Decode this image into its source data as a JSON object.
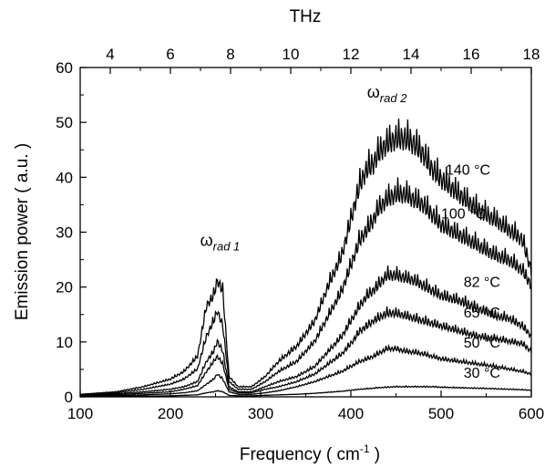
{
  "chart_data": {
    "type": "line",
    "xlabel": "Frequency ( cm",
    "xlabel_sup": "-1",
    "xlabel_end": " )",
    "ylabel": "Emission power  ( a.u. )",
    "top_axis_label": "THz",
    "xlim": [
      100,
      600
    ],
    "ylim": [
      0,
      60
    ],
    "top_xlim_thz": [
      3.0,
      18.0
    ],
    "x_ticks": [
      100,
      200,
      300,
      400,
      500,
      600
    ],
    "y_ticks": [
      0,
      10,
      20,
      30,
      40,
      50,
      60
    ],
    "top_ticks": [
      4,
      6,
      8,
      10,
      12,
      14,
      16,
      18
    ],
    "grid": false,
    "line_color": "#000000",
    "peak_labels": [
      {
        "greek": "ω",
        "sub": "rad 1",
        "x": 255,
        "y": 27.5
      },
      {
        "greek": "ω",
        "sub": "rad 2",
        "x": 440,
        "y": 54.5
      }
    ],
    "series": [
      {
        "name": "140 °C",
        "label_x": 505,
        "label_y": 40.5,
        "x": [
          100,
          140,
          170,
          200,
          215,
          230,
          240,
          248,
          252,
          258,
          265,
          275,
          290,
          305,
          320,
          340,
          360,
          375,
          390,
          400,
          410,
          418,
          425,
          430,
          440,
          450,
          460,
          470,
          480,
          490,
          500,
          520,
          540,
          560,
          575,
          590,
          600
        ],
        "y": [
          0.5,
          1.0,
          2.0,
          3.5,
          5.0,
          8.0,
          18.0,
          20.0,
          23.0,
          21.0,
          4.0,
          2.0,
          2.0,
          4.0,
          7.0,
          10.0,
          15.0,
          22.0,
          28.0,
          35.0,
          42.0,
          45.0,
          46.0,
          48.0,
          50.0,
          51.0,
          51.0,
          50.0,
          48.0,
          45.0,
          43.0,
          40.0,
          37.0,
          35.0,
          33.0,
          31.0,
          25.0
        ]
      },
      {
        "name": "100 °C",
        "label_x": 500,
        "label_y": 32.5,
        "x": [
          100,
          140,
          170,
          200,
          215,
          230,
          240,
          248,
          252,
          258,
          265,
          275,
          290,
          305,
          320,
          340,
          360,
          375,
          390,
          400,
          410,
          418,
          425,
          430,
          440,
          450,
          460,
          470,
          480,
          490,
          500,
          520,
          540,
          560,
          575,
          590,
          600
        ],
        "y": [
          0.4,
          0.8,
          1.5,
          2.5,
          3.5,
          5.5,
          12.0,
          15.0,
          17.0,
          14.0,
          3.0,
          1.5,
          1.5,
          3.0,
          5.0,
          7.0,
          11.0,
          16.0,
          21.0,
          26.0,
          31.0,
          33.0,
          35.0,
          37.0,
          39.0,
          40.0,
          40.0,
          39.0,
          38.0,
          36.0,
          34.0,
          32.0,
          30.0,
          28.0,
          27.0,
          25.0,
          22.0
        ]
      },
      {
        "name": "82 °C",
        "label_x": 525,
        "label_y": 20.0,
        "x": [
          100,
          140,
          170,
          200,
          215,
          230,
          240,
          248,
          252,
          258,
          265,
          275,
          290,
          305,
          320,
          340,
          360,
          375,
          390,
          400,
          410,
          418,
          425,
          430,
          440,
          450,
          460,
          470,
          480,
          490,
          500,
          520,
          540,
          560,
          575,
          590,
          600
        ],
        "y": [
          0.3,
          0.6,
          1.0,
          1.5,
          2.0,
          3.0,
          7.0,
          9.0,
          11.0,
          9.0,
          2.0,
          1.0,
          1.0,
          2.0,
          3.0,
          4.0,
          6.0,
          9.0,
          12.0,
          15.0,
          18.0,
          20.0,
          21.0,
          22.0,
          24.0,
          24.0,
          23.5,
          23.0,
          22.0,
          21.0,
          20.0,
          19.0,
          17.5,
          16.0,
          15.5,
          14.0,
          12.0
        ]
      },
      {
        "name": "65 °C",
        "label_x": 525,
        "label_y": 14.5,
        "x": [
          100,
          140,
          170,
          200,
          215,
          230,
          240,
          248,
          252,
          258,
          265,
          275,
          290,
          305,
          320,
          340,
          360,
          375,
          390,
          400,
          410,
          418,
          425,
          430,
          440,
          450,
          460,
          470,
          480,
          490,
          500,
          520,
          540,
          560,
          575,
          590,
          600
        ],
        "y": [
          0.2,
          0.4,
          0.7,
          1.0,
          1.5,
          2.2,
          5.0,
          7.0,
          8.0,
          6.5,
          1.5,
          0.8,
          0.8,
          1.5,
          2.0,
          3.0,
          4.5,
          6.5,
          8.5,
          10.5,
          13.0,
          14.0,
          15.0,
          15.5,
          16.5,
          16.5,
          16.0,
          15.5,
          15.0,
          14.5,
          14.0,
          13.0,
          12.0,
          11.5,
          11.0,
          10.5,
          9.0
        ]
      },
      {
        "name": "50 °C",
        "label_x": 525,
        "label_y": 9.0,
        "x": [
          100,
          140,
          170,
          200,
          215,
          230,
          240,
          248,
          252,
          258,
          265,
          275,
          290,
          305,
          320,
          340,
          360,
          375,
          390,
          400,
          410,
          418,
          425,
          430,
          440,
          450,
          460,
          470,
          480,
          490,
          500,
          520,
          540,
          560,
          575,
          590,
          600
        ],
        "y": [
          0.1,
          0.2,
          0.4,
          0.6,
          0.8,
          1.2,
          2.5,
          3.5,
          4.5,
          3.5,
          1.0,
          0.5,
          0.5,
          0.8,
          1.2,
          2.0,
          3.0,
          4.0,
          5.0,
          6.0,
          7.0,
          7.5,
          8.0,
          8.5,
          9.5,
          9.5,
          9.0,
          8.8,
          8.5,
          8.0,
          7.5,
          7.0,
          6.5,
          6.0,
          5.5,
          5.0,
          4.5
        ]
      },
      {
        "name": "30 °C",
        "label_x": 525,
        "label_y": 3.5,
        "x": [
          100,
          140,
          170,
          200,
          215,
          230,
          240,
          248,
          252,
          258,
          265,
          275,
          290,
          305,
          320,
          340,
          360,
          375,
          390,
          400,
          410,
          418,
          425,
          430,
          440,
          450,
          460,
          470,
          480,
          490,
          500,
          520,
          540,
          560,
          575,
          590,
          600
        ],
        "y": [
          0.05,
          0.1,
          0.15,
          0.2,
          0.3,
          0.4,
          0.8,
          1.0,
          1.2,
          1.0,
          0.3,
          0.2,
          0.2,
          0.3,
          0.4,
          0.5,
          0.7,
          0.9,
          1.1,
          1.3,
          1.5,
          1.6,
          1.7,
          1.8,
          1.9,
          2.0,
          2.0,
          2.0,
          2.0,
          2.0,
          1.9,
          1.8,
          1.7,
          1.6,
          1.5,
          1.4,
          1.3
        ]
      }
    ]
  }
}
